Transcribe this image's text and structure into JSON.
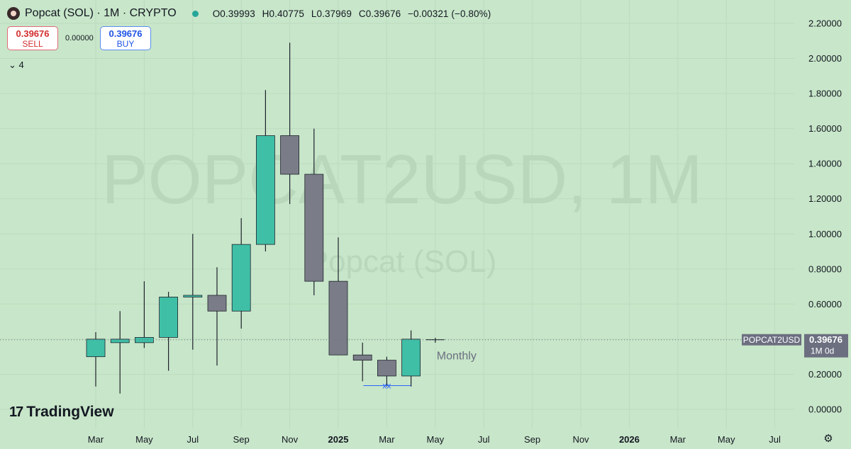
{
  "header": {
    "title": "Popcat (SOL) · 1M · CRYPTO",
    "ohlc": [
      {
        "k": "O",
        "v": "0.39993"
      },
      {
        "k": "H",
        "v": "0.40775"
      },
      {
        "k": "L",
        "v": "0.37969"
      },
      {
        "k": "C",
        "v": "0.39676"
      },
      {
        "k": "",
        "v": "−0.00321 (−0.80%)"
      }
    ]
  },
  "trade": {
    "sell_price": "0.39676",
    "sell_label": "SELL",
    "spread": "0.00000",
    "buy_price": "0.39676",
    "buy_label": "BUY"
  },
  "indicators_toggle": "⌄ 4",
  "watermark": {
    "line1": "POPCAT2USD, 1M",
    "line2": "Popcat (SOL)"
  },
  "brand": {
    "name": "TradingView",
    "mark": "17"
  },
  "colors": {
    "background": "#c8e6c9",
    "up": "#3fbfa6",
    "down": "#7a7c88",
    "price_tag": "#6b6f80",
    "annotation": "#2962ff"
  },
  "chart_data": {
    "type": "candlestick",
    "ylim": [
      -0.05,
      2.25
    ],
    "y_ticks": [
      "0.00000",
      "0.20000",
      "0.40000",
      "0.60000",
      "0.80000",
      "1.00000",
      "1.20000",
      "1.40000",
      "1.60000",
      "1.80000",
      "2.00000",
      "2.20000"
    ],
    "x_ticks": [
      "Mar",
      "May",
      "Jul",
      "Sep",
      "Nov",
      "2025",
      "Mar",
      "May",
      "Jul",
      "Sep",
      "Nov",
      "2026",
      "Mar",
      "May",
      "Jul"
    ],
    "candles": [
      {
        "t": "2024-03",
        "o": 0.3,
        "h": 0.44,
        "l": 0.13,
        "c": 0.4
      },
      {
        "t": "2024-04",
        "o": 0.38,
        "h": 0.56,
        "l": 0.09,
        "c": 0.4
      },
      {
        "t": "2024-05",
        "o": 0.38,
        "h": 0.73,
        "l": 0.35,
        "c": 0.41
      },
      {
        "t": "2024-06",
        "o": 0.41,
        "h": 0.67,
        "l": 0.22,
        "c": 0.64
      },
      {
        "t": "2024-07",
        "o": 0.64,
        "h": 1.0,
        "l": 0.34,
        "c": 0.65
      },
      {
        "t": "2024-08",
        "o": 0.65,
        "h": 0.81,
        "l": 0.25,
        "c": 0.56
      },
      {
        "t": "2024-09",
        "o": 0.56,
        "h": 1.09,
        "l": 0.46,
        "c": 0.94
      },
      {
        "t": "2024-10",
        "o": 0.94,
        "h": 1.82,
        "l": 0.9,
        "c": 1.56
      },
      {
        "t": "2024-11",
        "o": 1.56,
        "h": 2.09,
        "l": 1.17,
        "c": 1.34
      },
      {
        "t": "2024-12",
        "o": 1.34,
        "h": 1.6,
        "l": 0.65,
        "c": 0.73
      },
      {
        "t": "2025-01",
        "o": 0.73,
        "h": 0.98,
        "l": 0.31,
        "c": 0.31
      },
      {
        "t": "2025-02",
        "o": 0.31,
        "h": 0.38,
        "l": 0.16,
        "c": 0.28
      },
      {
        "t": "2025-03",
        "o": 0.28,
        "h": 0.3,
        "l": 0.13,
        "c": 0.19
      },
      {
        "t": "2025-04",
        "o": 0.19,
        "h": 0.45,
        "l": 0.13,
        "c": 0.4
      },
      {
        "t": "2025-05",
        "o": 0.39993,
        "h": 0.40775,
        "l": 0.37969,
        "c": 0.39676
      }
    ],
    "last_price_label": {
      "symbol": "POPCAT2USD",
      "price": "0.39676",
      "countdown": "1M 0d"
    },
    "annotations": [
      {
        "text": "Monthly",
        "t": "2025-05",
        "y": 0.3
      },
      {
        "text": "xx",
        "t": "2025-03",
        "y": 0.135
      }
    ]
  }
}
